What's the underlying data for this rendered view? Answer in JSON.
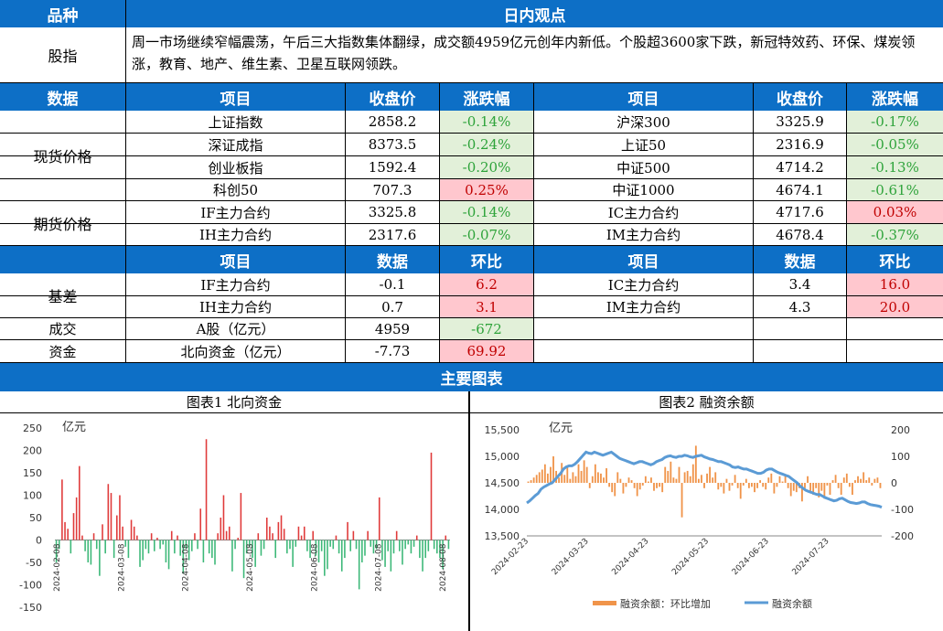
{
  "header": {
    "col1": "品种",
    "col2": "日内观点"
  },
  "commentary": {
    "label": "股指",
    "text": "周一市场继续窄幅震荡，午后三大指数集体翻绿，成交额4959亿元创年内新低。个股超3600家下跌，新冠特效药、环保、煤炭领涨，教育、地产、维生素、卫星互联网领跌。"
  },
  "price_header": [
    "数据",
    "项目",
    "收盘价",
    "涨跌幅",
    "项目",
    "收盘价",
    "涨跌幅"
  ],
  "spot_label": "现货价格",
  "futures_label": "期货价格",
  "spot_rows": [
    {
      "n1": "上证指数",
      "v1": "2858.2",
      "c1": "-0.14%",
      "s1": "neg",
      "n2": "沪深300",
      "v2": "3325.9",
      "c2": "-0.17%",
      "s2": "neg"
    },
    {
      "n1": "深证成指",
      "v1": "8373.5",
      "c1": "-0.24%",
      "s1": "neg",
      "n2": "上证50",
      "v2": "2316.9",
      "c2": "-0.05%",
      "s2": "neg"
    },
    {
      "n1": "创业板指",
      "v1": "1592.4",
      "c1": "-0.20%",
      "s1": "neg",
      "n2": "中证500",
      "v2": "4714.2",
      "c2": "-0.13%",
      "s2": "neg"
    },
    {
      "n1": "科创50",
      "v1": "707.3",
      "c1": "0.25%",
      "s1": "pos",
      "n2": "中证1000",
      "v2": "4674.1",
      "c2": "-0.61%",
      "s2": "neg"
    }
  ],
  "futures_rows": [
    {
      "n1": "IF主力合约",
      "v1": "3325.8",
      "c1": "-0.14%",
      "s1": "neg",
      "n2": "IC主力合约",
      "v2": "4717.6",
      "c2": "0.03%",
      "s2": "pos"
    },
    {
      "n1": "IH主力合约",
      "v1": "2317.6",
      "c1": "-0.07%",
      "s1": "neg",
      "n2": "IM主力合约",
      "v2": "4678.4",
      "c2": "-0.37%",
      "s2": "neg"
    }
  ],
  "basis_header": [
    "项目",
    "数据",
    "环比",
    "项目",
    "数据",
    "环比"
  ],
  "basis_label": "基差",
  "basis_rows": [
    {
      "n1": "IF主力合约",
      "v1": "-0.1",
      "c1": "6.2",
      "s1": "pos",
      "n2": "IC主力合约",
      "v2": "3.4",
      "c2": "16.0",
      "s2": "pos"
    },
    {
      "n1": "IH主力合约",
      "v1": "0.7",
      "c1": "3.1",
      "s1": "pos",
      "n2": "IM主力合约",
      "v2": "4.3",
      "c2": "20.0",
      "s2": "pos"
    }
  ],
  "volume_row": {
    "label": "成交",
    "name": "A股（亿元）",
    "value": "4959",
    "change": "-672",
    "style": "neg"
  },
  "fund_row": {
    "label": "资金",
    "name": "北向资金（亿元）",
    "value": "-7.73",
    "change": "69.92",
    "style": "pos"
  },
  "charts_header": "主要图表",
  "chart1_title": "图表1  北向资金",
  "chart2_title": "图表2  融资余额",
  "colors": {
    "header": "#0d6fc6",
    "pos_bg": "#ffc7ce",
    "pos_fg": "#c00000",
    "neg_bg": "#e2f0d9",
    "neg_fg": "#2ea33a",
    "bar_up": "#e03a3a",
    "bar_down": "#3cb878",
    "margin_bar": "#f0944a",
    "margin_line": "#5b9bd5"
  },
  "chart_data": [
    {
      "type": "bar",
      "unit": "亿元",
      "ylim": [
        -150,
        250
      ],
      "yticks": [
        -150,
        -100,
        -50,
        0,
        50,
        100,
        150,
        200,
        250
      ],
      "xtick_labels": [
        "2024-02-08",
        "2024-03-08",
        "2024-04-08",
        "2024-05-08",
        "2024-06-08",
        "2024-07-08",
        "2024-08-08"
      ],
      "values": [
        -50,
        -20,
        135,
        40,
        25,
        -30,
        60,
        95,
        165,
        10,
        -25,
        -50,
        -55,
        15,
        -20,
        -80,
        35,
        -30,
        125,
        105,
        -40,
        55,
        100,
        30,
        -15,
        -40,
        45,
        30,
        10,
        -60,
        -45,
        -20,
        -30,
        15,
        -25,
        5,
        -20,
        -10,
        -50,
        -65,
        20,
        -30,
        10,
        -35,
        -75,
        -20,
        -45,
        -25,
        15,
        -20,
        70,
        -50,
        225,
        -30,
        -40,
        -55,
        15,
        50,
        100,
        20,
        30,
        -70,
        -20,
        5,
        105,
        -85,
        -30,
        -15,
        -40,
        -60,
        15,
        -35,
        -20,
        50,
        30,
        15,
        -40,
        40,
        55,
        25,
        -30,
        -20,
        -60,
        -15,
        30,
        10,
        30,
        -25,
        -40,
        20,
        -35,
        -50,
        -25,
        -80,
        -65,
        -15,
        -20,
        10,
        -30,
        -70,
        -40,
        40,
        -25,
        20,
        -20,
        -110,
        -50,
        -35,
        20,
        -15,
        -30,
        -20,
        95,
        -45,
        -60,
        -25,
        -70,
        -30,
        20,
        -25,
        -55,
        -20,
        -10,
        -30,
        -15,
        10,
        -40,
        -70,
        -40,
        -25,
        195,
        -20,
        -30,
        -40,
        -65,
        10,
        -20
      ],
      "signal": "北向资金"
    },
    {
      "type": "bar+line",
      "unit": "亿元",
      "ylim_left": [
        13500,
        15500
      ],
      "yticks_left": [
        "13,500",
        "14,000",
        "14,500",
        "15,000",
        "15,500"
      ],
      "ylim_right": [
        -200,
        200
      ],
      "yticks_right": [
        -200,
        -100,
        0,
        100,
        200
      ],
      "xtick_labels": [
        "2024-02-23",
        "2024-03-23",
        "2024-04-23",
        "2024-05-23",
        "2024-06-23",
        "2024-07-23"
      ],
      "legend": [
        "融资余额：环比增加",
        "融资余额"
      ],
      "bar_values": [
        5,
        10,
        20,
        30,
        40,
        50,
        70,
        35,
        60,
        100,
        45,
        20,
        75,
        30,
        60,
        15,
        40,
        25,
        70,
        45,
        85,
        60,
        -20,
        25,
        70,
        40,
        35,
        20,
        55,
        -15,
        -35,
        -50,
        40,
        15,
        -40,
        -15,
        20,
        10,
        -20,
        -50,
        -25,
        -10,
        25,
        5,
        20,
        -30,
        -20,
        -15,
        -35,
        60,
        45,
        80,
        20,
        15,
        60,
        -130,
        40,
        45,
        25,
        70,
        140,
        15,
        30,
        -20,
        35,
        60,
        20,
        40,
        -25,
        -15,
        -40,
        15,
        -30,
        -10,
        30,
        -20,
        -60,
        -10,
        15,
        -20,
        -15,
        -35,
        -20,
        10,
        -15,
        -25,
        20,
        35,
        -40,
        -15,
        25,
        5,
        30,
        -20,
        -50,
        -30,
        -35,
        -20,
        -70,
        -20,
        25,
        -30,
        -45,
        -20,
        -55,
        -30,
        -60,
        -10,
        -45,
        10,
        30,
        -20,
        -45,
        20,
        35,
        -15,
        -45,
        10,
        25,
        15,
        40,
        10,
        20,
        -10,
        15,
        20,
        -20
      ],
      "line_values": [
        14120,
        14160,
        14210,
        14260,
        14300,
        14380,
        14420,
        14450,
        14480,
        14500,
        14560,
        14620,
        14680,
        14760,
        14800,
        14820,
        14820,
        14850,
        14900,
        14960,
        15020,
        15080,
        15060,
        15050,
        15080,
        15060,
        15040,
        15020,
        15040,
        15060,
        15080,
        15040,
        15000,
        14960,
        14940,
        14920,
        14900,
        14880,
        14860,
        14880,
        14900,
        14900,
        14880,
        14860,
        14840,
        14860,
        14900,
        14920,
        14940,
        14980,
        15000,
        15010,
        14990,
        14980,
        15000,
        15000,
        15020,
        15010,
        14990,
        14980,
        15000,
        15010,
        15020,
        14990,
        14970,
        14950,
        14940,
        14920,
        14900,
        14900,
        14880,
        14860,
        14840,
        14800,
        14790,
        14800,
        14780,
        14760,
        14760,
        14740,
        14720,
        14700,
        14680,
        14680,
        14700,
        14740,
        14760,
        14760,
        14730,
        14700,
        14680,
        14660,
        14640,
        14620,
        14580,
        14540,
        14500,
        14440,
        14400,
        14360,
        14340,
        14320,
        14300,
        14280,
        14280,
        14250,
        14220,
        14200,
        14180,
        14160,
        14170,
        14200,
        14210,
        14180,
        14150,
        14130,
        14120,
        14110,
        14120,
        14140,
        14140,
        14110,
        14090,
        14080,
        14070,
        14060,
        14040
      ]
    }
  ]
}
